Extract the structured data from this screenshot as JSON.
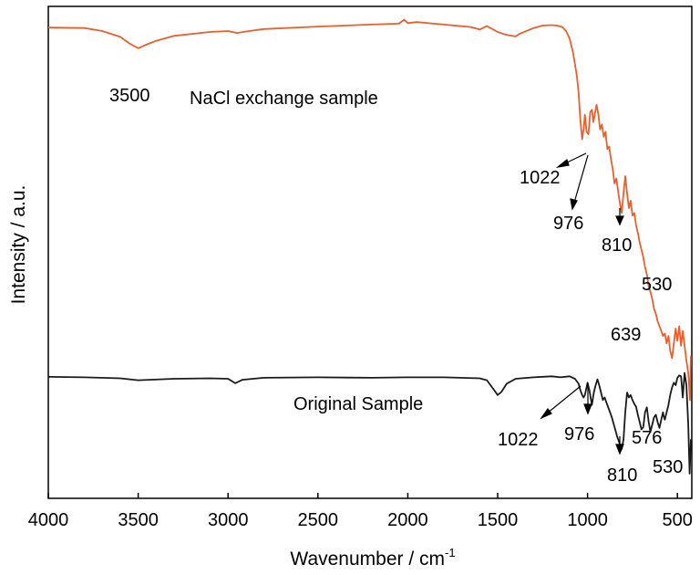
{
  "chart_data": {
    "type": "line",
    "xlabel": "Wavenumber / cm",
    "xlabel_sup": "-1",
    "ylabel": "Intensity / a.u.",
    "xlim": [
      4000,
      420
    ],
    "x_reversed": true,
    "xticks": [
      4000,
      3500,
      3000,
      2500,
      2000,
      1500,
      1000,
      500
    ],
    "yticks_shown": false,
    "grid": false,
    "legend": "none",
    "y_units": "arbitrary intensity, 0 = bottom of axes, 100 = top of axes",
    "series": [
      {
        "name": "NaCl exchange sample",
        "color": "#e8602c",
        "x": [
          4000,
          3800,
          3700,
          3600,
          3550,
          3500,
          3450,
          3400,
          3300,
          3100,
          3000,
          2950,
          2900,
          2800,
          2500,
          2200,
          2050,
          2020,
          2000,
          1950,
          1800,
          1650,
          1600,
          1560,
          1500,
          1460,
          1420,
          1400,
          1380,
          1300,
          1250,
          1200,
          1170,
          1140,
          1120,
          1100,
          1080,
          1060,
          1050,
          1040,
          1030,
          1022,
          1015,
          1005,
          995,
          985,
          976,
          968,
          960,
          950,
          940,
          930,
          920,
          910,
          900,
          890,
          880,
          870,
          860,
          850,
          840,
          830,
          820,
          810,
          800,
          790,
          780,
          770,
          760,
          750,
          740,
          730,
          720,
          710,
          700,
          690,
          680,
          670,
          660,
          650,
          640,
          630,
          620,
          610,
          600,
          590,
          580,
          570,
          560,
          550,
          540,
          530,
          520,
          510,
          500,
          490,
          480,
          470,
          460,
          450,
          440,
          430,
          425
        ],
        "y": [
          95.7,
          95.6,
          95.0,
          93.8,
          92.5,
          91.5,
          92.3,
          93.0,
          94.0,
          94.8,
          95.0,
          94.6,
          94.9,
          95.4,
          95.9,
          96.3,
          96.5,
          97.3,
          96.6,
          96.8,
          96.3,
          95.8,
          95.3,
          96.0,
          94.8,
          94.3,
          94.0,
          93.9,
          94.4,
          95.6,
          96.1,
          96.2,
          96.1,
          95.8,
          95.0,
          93.5,
          90.5,
          86.0,
          82.5,
          77.0,
          73.0,
          75.0,
          78.0,
          74.5,
          74.0,
          78.5,
          79.0,
          76.5,
          78.0,
          80.0,
          78.0,
          75.0,
          76.0,
          73.5,
          74.5,
          71.0,
          71.5,
          69.0,
          67.0,
          64.0,
          65.0,
          62.5,
          60.0,
          58.0,
          62.0,
          65.5,
          62.0,
          59.0,
          60.5,
          57.5,
          58.0,
          55.5,
          54.0,
          52.0,
          50.5,
          49.0,
          47.0,
          45.5,
          43.0,
          42.0,
          40.5,
          38.5,
          37.5,
          36.0,
          35.0,
          34.0,
          33.0,
          33.5,
          31.5,
          33.0,
          30.0,
          28.5,
          31.5,
          34.5,
          32.0,
          35.0,
          31.0,
          34.0,
          31.0,
          28.0,
          25.5,
          20.0,
          29.0
        ]
      },
      {
        "name": "Original Sample",
        "color": "#1a1a1a",
        "x": [
          4000,
          3800,
          3600,
          3500,
          3300,
          3100,
          3000,
          2960,
          2920,
          2800,
          2500,
          2200,
          2000,
          1800,
          1600,
          1560,
          1520,
          1500,
          1480,
          1450,
          1400,
          1300,
          1200,
          1150,
          1100,
          1070,
          1050,
          1040,
          1030,
          1022,
          1015,
          1000,
          990,
          976,
          965,
          955,
          945,
          935,
          925,
          915,
          905,
          895,
          880,
          865,
          850,
          835,
          825,
          815,
          810,
          800,
          790,
          780,
          770,
          760,
          750,
          740,
          730,
          720,
          710,
          700,
          690,
          680,
          670,
          660,
          650,
          640,
          630,
          620,
          610,
          600,
          590,
          580,
          576,
          570,
          560,
          550,
          540,
          530,
          520,
          510,
          500,
          490,
          480,
          470,
          460,
          450,
          440,
          432,
          425
        ],
        "y": [
          24.7,
          24.6,
          24.4,
          24.0,
          24.3,
          24.4,
          24.3,
          23.4,
          24.1,
          24.5,
          24.6,
          24.5,
          24.6,
          24.6,
          24.4,
          24.0,
          22.0,
          21.0,
          21.6,
          23.3,
          24.3,
          24.6,
          24.8,
          24.6,
          24.8,
          24.3,
          23.3,
          22.0,
          21.0,
          20.5,
          21.0,
          23.5,
          22.0,
          19.0,
          21.5,
          23.0,
          24.2,
          23.0,
          21.5,
          20.0,
          20.5,
          19.5,
          18.0,
          16.5,
          14.5,
          12.5,
          11.5,
          10.5,
          10.0,
          12.0,
          17.5,
          21.5,
          20.5,
          21.0,
          20.0,
          19.2,
          18.6,
          17.0,
          15.5,
          14.0,
          14.5,
          17.5,
          18.5,
          15.5,
          13.5,
          15.0,
          16.5,
          17.0,
          15.5,
          14.3,
          16.0,
          17.5,
          16.7,
          16.0,
          17.5,
          19.0,
          21.0,
          22.5,
          23.5,
          23.0,
          24.5,
          25.0,
          24.8,
          20.5,
          25.5,
          23.0,
          15.0,
          5.0,
          12.0
        ]
      }
    ],
    "annotations": [
      {
        "text": "NaCl exchange sample",
        "kind": "series-label"
      },
      {
        "text": "3500",
        "kind": "peak-label"
      },
      {
        "text": "1022",
        "kind": "peak-label"
      },
      {
        "text": "976",
        "kind": "peak-label"
      },
      {
        "text": "810",
        "kind": "peak-label"
      },
      {
        "text": "530",
        "kind": "peak-label"
      },
      {
        "text": "639",
        "kind": "peak-label"
      },
      {
        "text": "Original Sample",
        "kind": "series-label"
      },
      {
        "text": "1022",
        "kind": "peak-label"
      },
      {
        "text": "976",
        "kind": "peak-label"
      },
      {
        "text": "576",
        "kind": "peak-label"
      },
      {
        "text": "810",
        "kind": "peak-label"
      },
      {
        "text": "530",
        "kind": "peak-label"
      }
    ]
  }
}
